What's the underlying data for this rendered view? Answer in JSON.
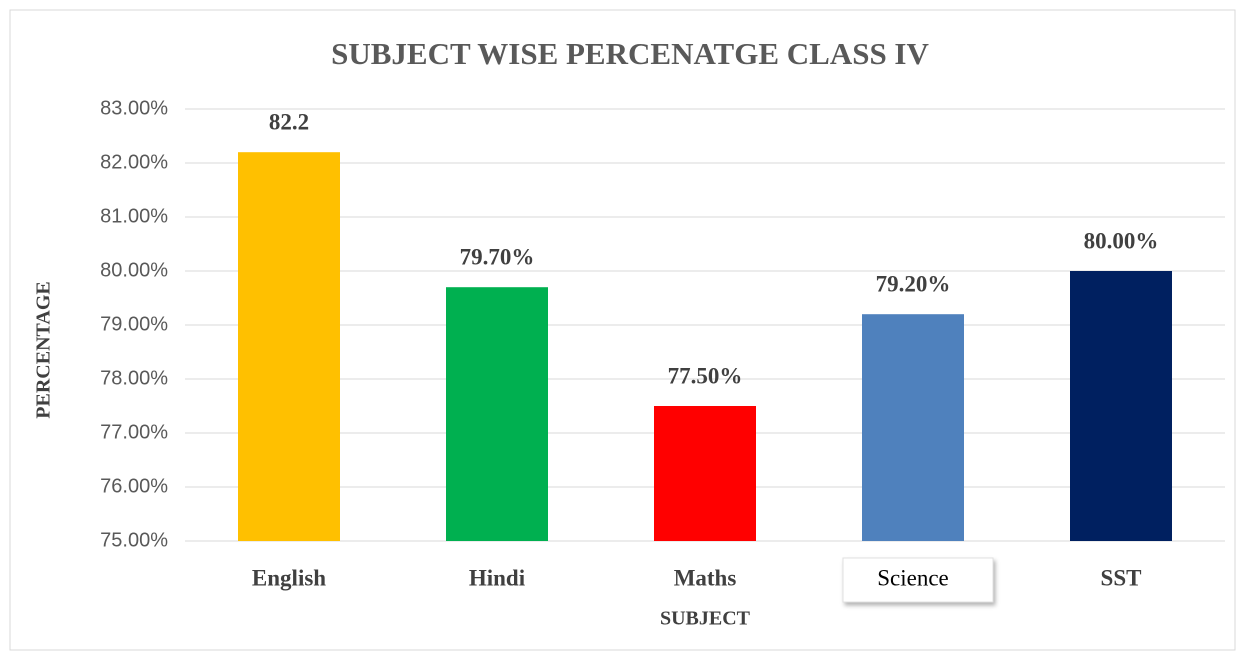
{
  "chart_data": {
    "type": "bar",
    "title": "SUBJECT WISE PERCENATGE CLASS IV",
    "x_label": "SUBJECT",
    "y_label": "PERCENTAGE",
    "categories": [
      "English",
      "Hindi",
      "Maths",
      "Science",
      "SST"
    ],
    "values": [
      82.2,
      79.7,
      77.5,
      79.2,
      80.0
    ],
    "value_labels": [
      "82.2",
      "79.70%",
      "77.50%",
      "79.20%",
      "80.00%"
    ],
    "colors": [
      "#ffc000",
      "#00b050",
      "#ff0000",
      "#4f81bd",
      "#002060"
    ],
    "ylim": [
      75,
      83
    ],
    "yticks": [
      {
        "value": 75,
        "label": "75.00%"
      },
      {
        "value": 76,
        "label": "76.00%"
      },
      {
        "value": 77,
        "label": "77.00%"
      },
      {
        "value": 78,
        "label": "78.00%"
      },
      {
        "value": 79,
        "label": "79.00%"
      },
      {
        "value": 80,
        "label": "80.00%"
      },
      {
        "value": 81,
        "label": "81.00%"
      },
      {
        "value": 82,
        "label": "82.00%"
      },
      {
        "value": 83,
        "label": "83.00%"
      }
    ],
    "grid": true
  }
}
